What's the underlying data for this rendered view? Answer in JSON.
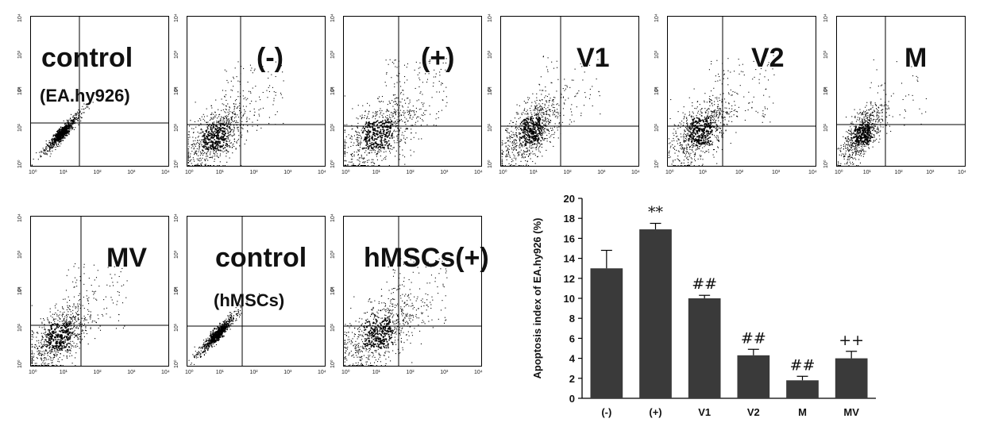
{
  "flow_panels": [
    {
      "labels": [
        {
          "text": "control",
          "size": "big"
        },
        {
          "text": "(EA.hy926)",
          "size": "small"
        }
      ],
      "pattern": "diagonal"
    },
    {
      "labels": [
        {
          "text": "(-)",
          "size": "big"
        }
      ],
      "pattern": "spread_low"
    },
    {
      "labels": [
        {
          "text": "(+)",
          "size": "big"
        }
      ],
      "pattern": "spread_high"
    },
    {
      "labels": [
        {
          "text": "V1",
          "size": "big"
        }
      ],
      "pattern": "spread_mid"
    },
    {
      "labels": [
        {
          "text": "V2",
          "size": "big"
        }
      ],
      "pattern": "spread_mid"
    },
    {
      "labels": [
        {
          "text": "M",
          "size": "big"
        }
      ],
      "pattern": "compact"
    },
    {
      "labels": [
        {
          "text": "MV",
          "size": "big"
        }
      ],
      "pattern": "spread_low"
    },
    {
      "labels": [
        {
          "text": "control",
          "size": "big"
        },
        {
          "text": "(hMSCs)",
          "size": "small"
        }
      ],
      "pattern": "diagonal"
    },
    {
      "labels": [
        {
          "text": "hMSCs(+)",
          "size": "big"
        }
      ],
      "pattern": "spread_high"
    }
  ],
  "flow_axis": {
    "ticks": [
      "10⁰",
      "10¹",
      "10²",
      "10³",
      "10⁴"
    ],
    "y_title": "PI"
  },
  "chart_data": {
    "type": "bar",
    "categories": [
      "(-)",
      "(+)",
      "V1",
      "V2",
      "M",
      "MV"
    ],
    "values": [
      13.0,
      16.9,
      10.0,
      4.3,
      1.8,
      4.0
    ],
    "errors": [
      1.8,
      0.6,
      0.3,
      0.6,
      0.4,
      0.7
    ],
    "annotations": [
      "",
      "**",
      "##",
      "##",
      "##",
      "++"
    ],
    "ylabel": "Apoptosis index of EA.hy926 (%)",
    "ylim": [
      0,
      20
    ],
    "yticks": [
      0,
      2,
      4,
      6,
      8,
      10,
      12,
      14,
      16,
      18,
      20
    ],
    "bar_color": "#3a3a3a",
    "grid": false
  }
}
